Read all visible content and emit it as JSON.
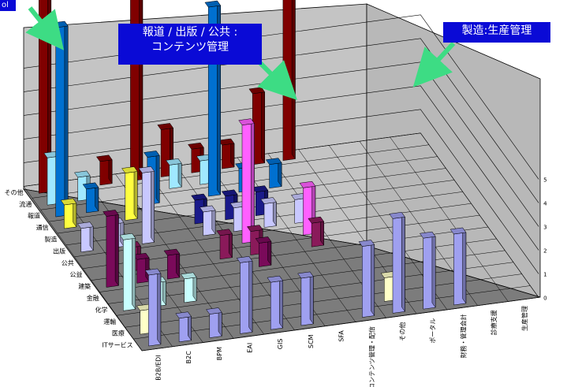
{
  "chart_data": {
    "type": "bar",
    "title": "",
    "xlabel": "",
    "ylabel": "",
    "categories": [
      "B2B/EDI",
      "B2C",
      "BPM",
      "EAI",
      "GIS",
      "SCM",
      "SFA",
      "コンテンツ管理・配信",
      "その他",
      "ポータル",
      "財務・管理会計",
      "診療支援",
      "生産管理"
    ],
    "depth_categories": [
      "ITサービス",
      "医療",
      "運輸",
      "化学",
      "金融",
      "建築",
      "公益",
      "公共",
      "出版",
      "製造",
      "通信",
      "報道",
      "流通",
      "その他"
    ],
    "z_axis_ticks": [
      "0",
      "1",
      "2",
      "3",
      "4",
      "5"
    ],
    "bars": [
      {
        "category": "B2B/EDI",
        "depth": "ITサービス",
        "value": 3
      },
      {
        "category": "B2B/EDI",
        "depth": "医療",
        "value": 1
      },
      {
        "category": "B2B/EDI",
        "depth": "化学",
        "value": 3
      },
      {
        "category": "B2B/EDI",
        "depth": "建築",
        "value": 3
      },
      {
        "category": "B2B/EDI",
        "depth": "出版",
        "value": 1
      },
      {
        "category": "B2B/EDI",
        "depth": "通信",
        "value": 1
      },
      {
        "category": "B2B/EDI",
        "depth": "報道",
        "value": 8
      },
      {
        "category": "B2B/EDI",
        "depth": "流通",
        "value": 2
      },
      {
        "category": "B2B/EDI",
        "depth": "その他",
        "value": 10
      },
      {
        "category": "B2C",
        "depth": "ITサービス",
        "value": 1
      },
      {
        "category": "B2C",
        "depth": "化学",
        "value": 1
      },
      {
        "category": "B2C",
        "depth": "建築",
        "value": 1
      },
      {
        "category": "B2C",
        "depth": "公益",
        "value": 1
      },
      {
        "category": "B2C",
        "depth": "出版",
        "value": 1
      },
      {
        "category": "B2C",
        "depth": "報道",
        "value": 1
      },
      {
        "category": "B2C",
        "depth": "流通",
        "value": 1
      },
      {
        "category": "BPM",
        "depth": "ITサービス",
        "value": 1
      },
      {
        "category": "BPM",
        "depth": "化学",
        "value": 1
      },
      {
        "category": "BPM",
        "depth": "建築",
        "value": 1
      },
      {
        "category": "BPM",
        "depth": "出版",
        "value": 3
      },
      {
        "category": "BPM",
        "depth": "通信",
        "value": 2
      },
      {
        "category": "BPM",
        "depth": "その他",
        "value": 1
      },
      {
        "category": "EAI",
        "depth": "ITサービス",
        "value": 3
      },
      {
        "category": "EAI",
        "depth": "報道",
        "value": 2
      },
      {
        "category": "EAI",
        "depth": "その他",
        "value": 8
      },
      {
        "category": "GIS",
        "depth": "ITサービス",
        "value": 2
      },
      {
        "category": "GIS",
        "depth": "公益",
        "value": 1
      },
      {
        "category": "GIS",
        "depth": "出版",
        "value": 1
      },
      {
        "category": "GIS",
        "depth": "製造",
        "value": 1
      },
      {
        "category": "GIS",
        "depth": "流通",
        "value": 1
      },
      {
        "category": "GIS",
        "depth": "その他",
        "value": 2
      },
      {
        "category": "SCM",
        "depth": "ITサービス",
        "value": 2
      },
      {
        "category": "SCM",
        "depth": "建築",
        "value": 1
      },
      {
        "category": "SCM",
        "depth": "公益",
        "value": 1
      },
      {
        "category": "SCM",
        "depth": "公共",
        "value": 5
      },
      {
        "category": "SCM",
        "depth": "出版",
        "value": 1
      },
      {
        "category": "SCM",
        "depth": "製造",
        "value": 1
      },
      {
        "category": "SCM",
        "depth": "報道",
        "value": 8
      },
      {
        "category": "SCM",
        "depth": "流通",
        "value": 1
      },
      {
        "category": "SCM",
        "depth": "その他",
        "value": 1
      },
      {
        "category": "SFA",
        "depth": "出版",
        "value": 1
      },
      {
        "category": "SFA",
        "depth": "製造",
        "value": 1
      },
      {
        "category": "SFA",
        "depth": "報道",
        "value": 1
      },
      {
        "category": "SFA",
        "depth": "その他",
        "value": 1
      },
      {
        "category": "コンテンツ管理・配信",
        "depth": "ITサービス",
        "value": 3
      },
      {
        "category": "コンテンツ管理・配信",
        "depth": "公益",
        "value": 1
      },
      {
        "category": "コンテンツ管理・配信",
        "depth": "公共",
        "value": 2
      },
      {
        "category": "コンテンツ管理・配信",
        "depth": "出版",
        "value": 1
      },
      {
        "category": "コンテンツ管理・配信",
        "depth": "報道",
        "value": 1
      },
      {
        "category": "コンテンツ管理・配信",
        "depth": "その他",
        "value": 3
      },
      {
        "category": "その他",
        "depth": "ITサービス",
        "value": 4
      },
      {
        "category": "その他",
        "depth": "医療",
        "value": 1
      },
      {
        "category": "その他",
        "depth": "その他",
        "value": 8
      },
      {
        "category": "ポータル",
        "depth": "ITサービス",
        "value": 3
      },
      {
        "category": "財務・管理会計",
        "depth": "ITサービス",
        "value": 3
      }
    ],
    "annotations": [
      "報道 / 出版 / 公共 : コンテンツ管理",
      "製造:生産管理",
      "ol"
    ]
  },
  "callouts": {
    "content": {
      "line1": "報道 / 出版 / 公共 :",
      "line2": "コンテンツ管理"
    },
    "seizo": {
      "text": "製造:生産管理"
    },
    "left": {
      "text": "ol"
    }
  },
  "colors": {
    "callout_bg": "#0a0ad6",
    "highlight_circle": "#e01010",
    "arrow": "#3ddc84",
    "wall": "#c0c0c0",
    "floor": "#808080"
  }
}
